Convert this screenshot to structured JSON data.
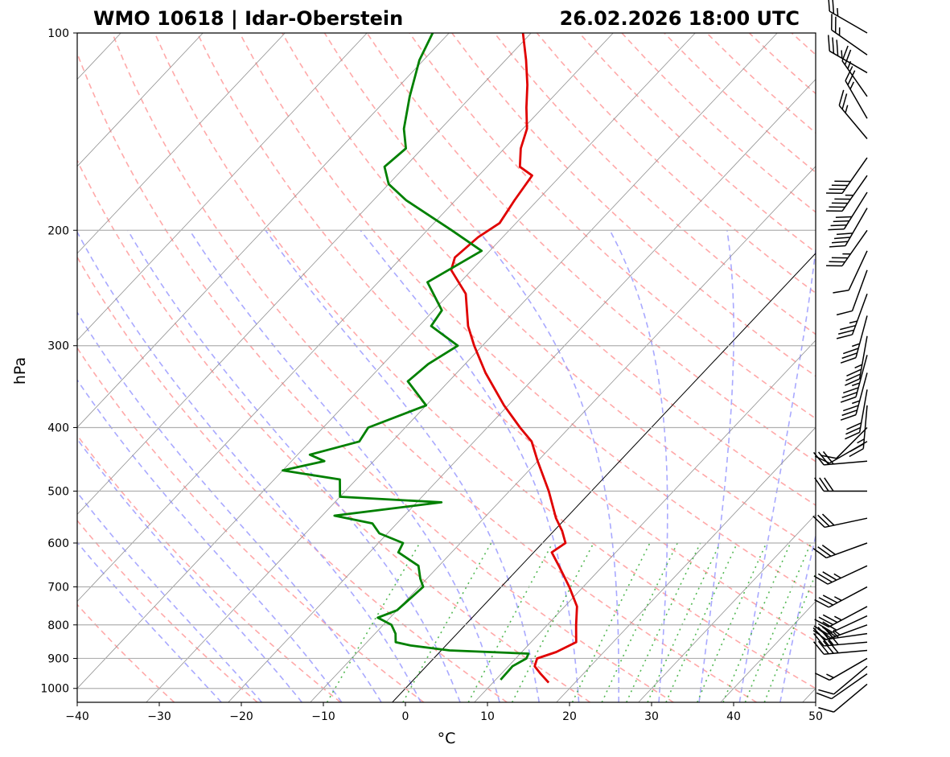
{
  "chart_data": {
    "type": "line",
    "subtype": "skew-T log-P sounding",
    "title_left": "WMO 10618 | Idar-Oberstein",
    "title_right": "26.02.2026 18:00 UTC",
    "xlabel": "°C",
    "ylabel": "hPa",
    "xlim": [
      -40,
      50
    ],
    "ylim": [
      1050,
      100
    ],
    "x_ticks": [
      -40,
      -30,
      -20,
      -10,
      0,
      10,
      20,
      30,
      40,
      50
    ],
    "x_tick_labels": [
      "−40",
      "−30",
      "−20",
      "−10",
      "0",
      "10",
      "20",
      "30",
      "40",
      "50"
    ],
    "y_ticks": [
      1000,
      900,
      800,
      700,
      600,
      500,
      400,
      300,
      200,
      100
    ],
    "y_tick_labels": [
      "1000",
      "900",
      "800",
      "700",
      "600",
      "500",
      "400",
      "300",
      "200",
      "100"
    ],
    "colors": {
      "temperature": "#e00000",
      "dewpoint": "#008000",
      "dry_adiabat": "#ff9a9a",
      "moist_adiabat": "#9a9aff",
      "mixing_ratio": "#40b040",
      "isotherm": "#909090",
      "grid": "#b0b0b0"
    },
    "series": [
      {
        "name": "temperature",
        "points": [
          {
            "p": 980,
            "t": 16.8
          },
          {
            "p": 950,
            "t": 14.8
          },
          {
            "p": 925,
            "t": 13.2
          },
          {
            "p": 900,
            "t": 12.6
          },
          {
            "p": 880,
            "t": 14.2
          },
          {
            "p": 850,
            "t": 15.5
          },
          {
            "p": 800,
            "t": 13.5
          },
          {
            "p": 750,
            "t": 11.5
          },
          {
            "p": 700,
            "t": 8.3
          },
          {
            "p": 650,
            "t": 4.6
          },
          {
            "p": 620,
            "t": 2.2
          },
          {
            "p": 600,
            "t": 2.8
          },
          {
            "p": 575,
            "t": 1.0
          },
          {
            "p": 550,
            "t": -1.2
          },
          {
            "p": 500,
            "t": -5.2
          },
          {
            "p": 450,
            "t": -10.0
          },
          {
            "p": 420,
            "t": -13.0
          },
          {
            "p": 400,
            "t": -16.0
          },
          {
            "p": 370,
            "t": -20.5
          },
          {
            "p": 330,
            "t": -26.5
          },
          {
            "p": 300,
            "t": -31.0
          },
          {
            "p": 280,
            "t": -34.0
          },
          {
            "p": 250,
            "t": -38.0
          },
          {
            "p": 230,
            "t": -42.5
          },
          {
            "p": 220,
            "t": -43.5
          },
          {
            "p": 205,
            "t": -43.0
          },
          {
            "p": 195,
            "t": -42.0
          },
          {
            "p": 180,
            "t": -42.8
          },
          {
            "p": 165,
            "t": -43.5
          },
          {
            "p": 160,
            "t": -46.0
          },
          {
            "p": 150,
            "t": -48.0
          },
          {
            "p": 140,
            "t": -49.5
          },
          {
            "p": 130,
            "t": -52.0
          },
          {
            "p": 120,
            "t": -54.5
          },
          {
            "p": 110,
            "t": -57.5
          },
          {
            "p": 100,
            "t": -61.0
          }
        ]
      },
      {
        "name": "dewpoint",
        "points": [
          {
            "p": 970,
            "t": 10.6
          },
          {
            "p": 925,
            "t": 10.5
          },
          {
            "p": 900,
            "t": 11.3
          },
          {
            "p": 885,
            "t": 11.0
          },
          {
            "p": 875,
            "t": 1.0
          },
          {
            "p": 860,
            "t": -4.3
          },
          {
            "p": 850,
            "t": -6.5
          },
          {
            "p": 825,
            "t": -7.5
          },
          {
            "p": 800,
            "t": -9.0
          },
          {
            "p": 780,
            "t": -11.5
          },
          {
            "p": 760,
            "t": -10.0
          },
          {
            "p": 700,
            "t": -9.5
          },
          {
            "p": 680,
            "t": -10.8
          },
          {
            "p": 650,
            "t": -12.5
          },
          {
            "p": 620,
            "t": -16.5
          },
          {
            "p": 600,
            "t": -17.0
          },
          {
            "p": 580,
            "t": -21.0
          },
          {
            "p": 560,
            "t": -23.0
          },
          {
            "p": 545,
            "t": -28.5
          },
          {
            "p": 520,
            "t": -17.0
          },
          {
            "p": 510,
            "t": -30.0
          },
          {
            "p": 480,
            "t": -32.0
          },
          {
            "p": 465,
            "t": -40.0
          },
          {
            "p": 450,
            "t": -36.0
          },
          {
            "p": 440,
            "t": -38.5
          },
          {
            "p": 420,
            "t": -34.0
          },
          {
            "p": 400,
            "t": -34.5
          },
          {
            "p": 370,
            "t": -30.0
          },
          {
            "p": 340,
            "t": -35.0
          },
          {
            "p": 320,
            "t": -34.5
          },
          {
            "p": 300,
            "t": -33.0
          },
          {
            "p": 280,
            "t": -38.5
          },
          {
            "p": 265,
            "t": -39.0
          },
          {
            "p": 240,
            "t": -44.0
          },
          {
            "p": 215,
            "t": -41.0
          },
          {
            "p": 200,
            "t": -47.0
          },
          {
            "p": 180,
            "t": -56.0
          },
          {
            "p": 170,
            "t": -60.0
          },
          {
            "p": 160,
            "t": -62.5
          },
          {
            "p": 150,
            "t": -62.0
          },
          {
            "p": 140,
            "t": -64.5
          },
          {
            "p": 125,
            "t": -67.5
          },
          {
            "p": 110,
            "t": -70.5
          },
          {
            "p": 100,
            "t": -72.0
          }
        ]
      }
    ],
    "wind_barbs": [
      {
        "p": 985,
        "dir": 230,
        "spd": 10
      },
      {
        "p": 950,
        "dir": 235,
        "spd": 10
      },
      {
        "p": 925,
        "dir": 230,
        "spd": 10
      },
      {
        "p": 900,
        "dir": 240,
        "spd": 15
      },
      {
        "p": 875,
        "dir": 265,
        "spd": 40
      },
      {
        "p": 850,
        "dir": 265,
        "spd": 40
      },
      {
        "p": 825,
        "dir": 262,
        "spd": 35
      },
      {
        "p": 800,
        "dir": 250,
        "spd": 35
      },
      {
        "p": 775,
        "dir": 245,
        "spd": 30
      },
      {
        "p": 750,
        "dir": 242,
        "spd": 35
      },
      {
        "p": 700,
        "dir": 242,
        "spd": 35
      },
      {
        "p": 650,
        "dir": 245,
        "spd": 35
      },
      {
        "p": 600,
        "dir": 250,
        "spd": 30
      },
      {
        "p": 550,
        "dir": 258,
        "spd": 30
      },
      {
        "p": 500,
        "dir": 270,
        "spd": 30
      },
      {
        "p": 450,
        "dir": 265,
        "spd": 30
      },
      {
        "p": 420,
        "dir": 240,
        "spd": 10
      },
      {
        "p": 400,
        "dir": 225,
        "spd": 10
      },
      {
        "p": 370,
        "dir": 185,
        "spd": 25
      },
      {
        "p": 350,
        "dir": 190,
        "spd": 30
      },
      {
        "p": 330,
        "dir": 195,
        "spd": 35
      },
      {
        "p": 310,
        "dir": 195,
        "spd": 35
      },
      {
        "p": 290,
        "dir": 190,
        "spd": 35
      },
      {
        "p": 270,
        "dir": 195,
        "spd": 35
      },
      {
        "p": 250,
        "dir": 200,
        "spd": 35
      },
      {
        "p": 230,
        "dir": 200,
        "spd": 10
      },
      {
        "p": 215,
        "dir": 205,
        "spd": 10
      },
      {
        "p": 200,
        "dir": 215,
        "spd": 35
      },
      {
        "p": 185,
        "dir": 210,
        "spd": 40
      },
      {
        "p": 175,
        "dir": 212,
        "spd": 40
      },
      {
        "p": 165,
        "dir": 215,
        "spd": 45
      },
      {
        "p": 155,
        "dir": 215,
        "spd": 40
      },
      {
        "p": 145,
        "dir": 320,
        "spd": 25
      },
      {
        "p": 135,
        "dir": 330,
        "spd": 25
      },
      {
        "p": 125,
        "dir": 325,
        "spd": 25
      },
      {
        "p": 115,
        "dir": 300,
        "spd": 35
      },
      {
        "p": 108,
        "dir": 305,
        "spd": 25
      },
      {
        "p": 100,
        "dir": 300,
        "spd": 25
      }
    ]
  }
}
